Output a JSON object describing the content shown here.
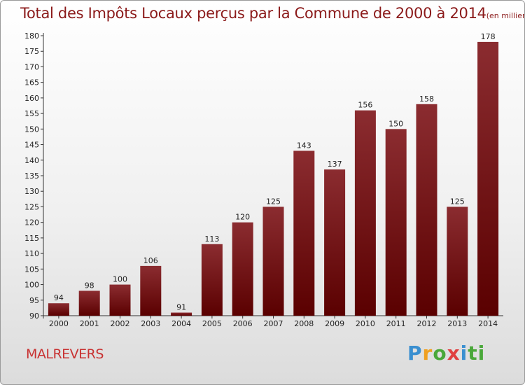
{
  "header": {
    "title": "Total des Impôts Locaux perçus par la Commune de 2000 à 2014",
    "unit": "(en milliers d'€)"
  },
  "footer": {
    "commune": "MALREVERS",
    "brand_letters": [
      "P",
      "r",
      "o",
      "x",
      "i",
      "ti"
    ]
  },
  "chart_data": {
    "type": "bar",
    "title": "Total des Impôts Locaux perçus par la Commune de 2000 à 2014",
    "subtitle": "(en milliers d'€)",
    "xlabel": "",
    "ylabel": "",
    "categories": [
      "2000",
      "2001",
      "2002",
      "2003",
      "2004",
      "2005",
      "2006",
      "2007",
      "2008",
      "2009",
      "2010",
      "2011",
      "2012",
      "2013",
      "2014"
    ],
    "values": [
      94,
      98,
      100,
      106,
      91,
      113,
      120,
      125,
      143,
      137,
      156,
      150,
      158,
      125,
      178
    ],
    "ylim": [
      90,
      180
    ],
    "ytick_step": 5,
    "grid": false,
    "colors": {
      "bar_top": "#8b2c30",
      "bar_bottom": "#5a0000",
      "axis": "#333333",
      "label": "#222222"
    }
  }
}
